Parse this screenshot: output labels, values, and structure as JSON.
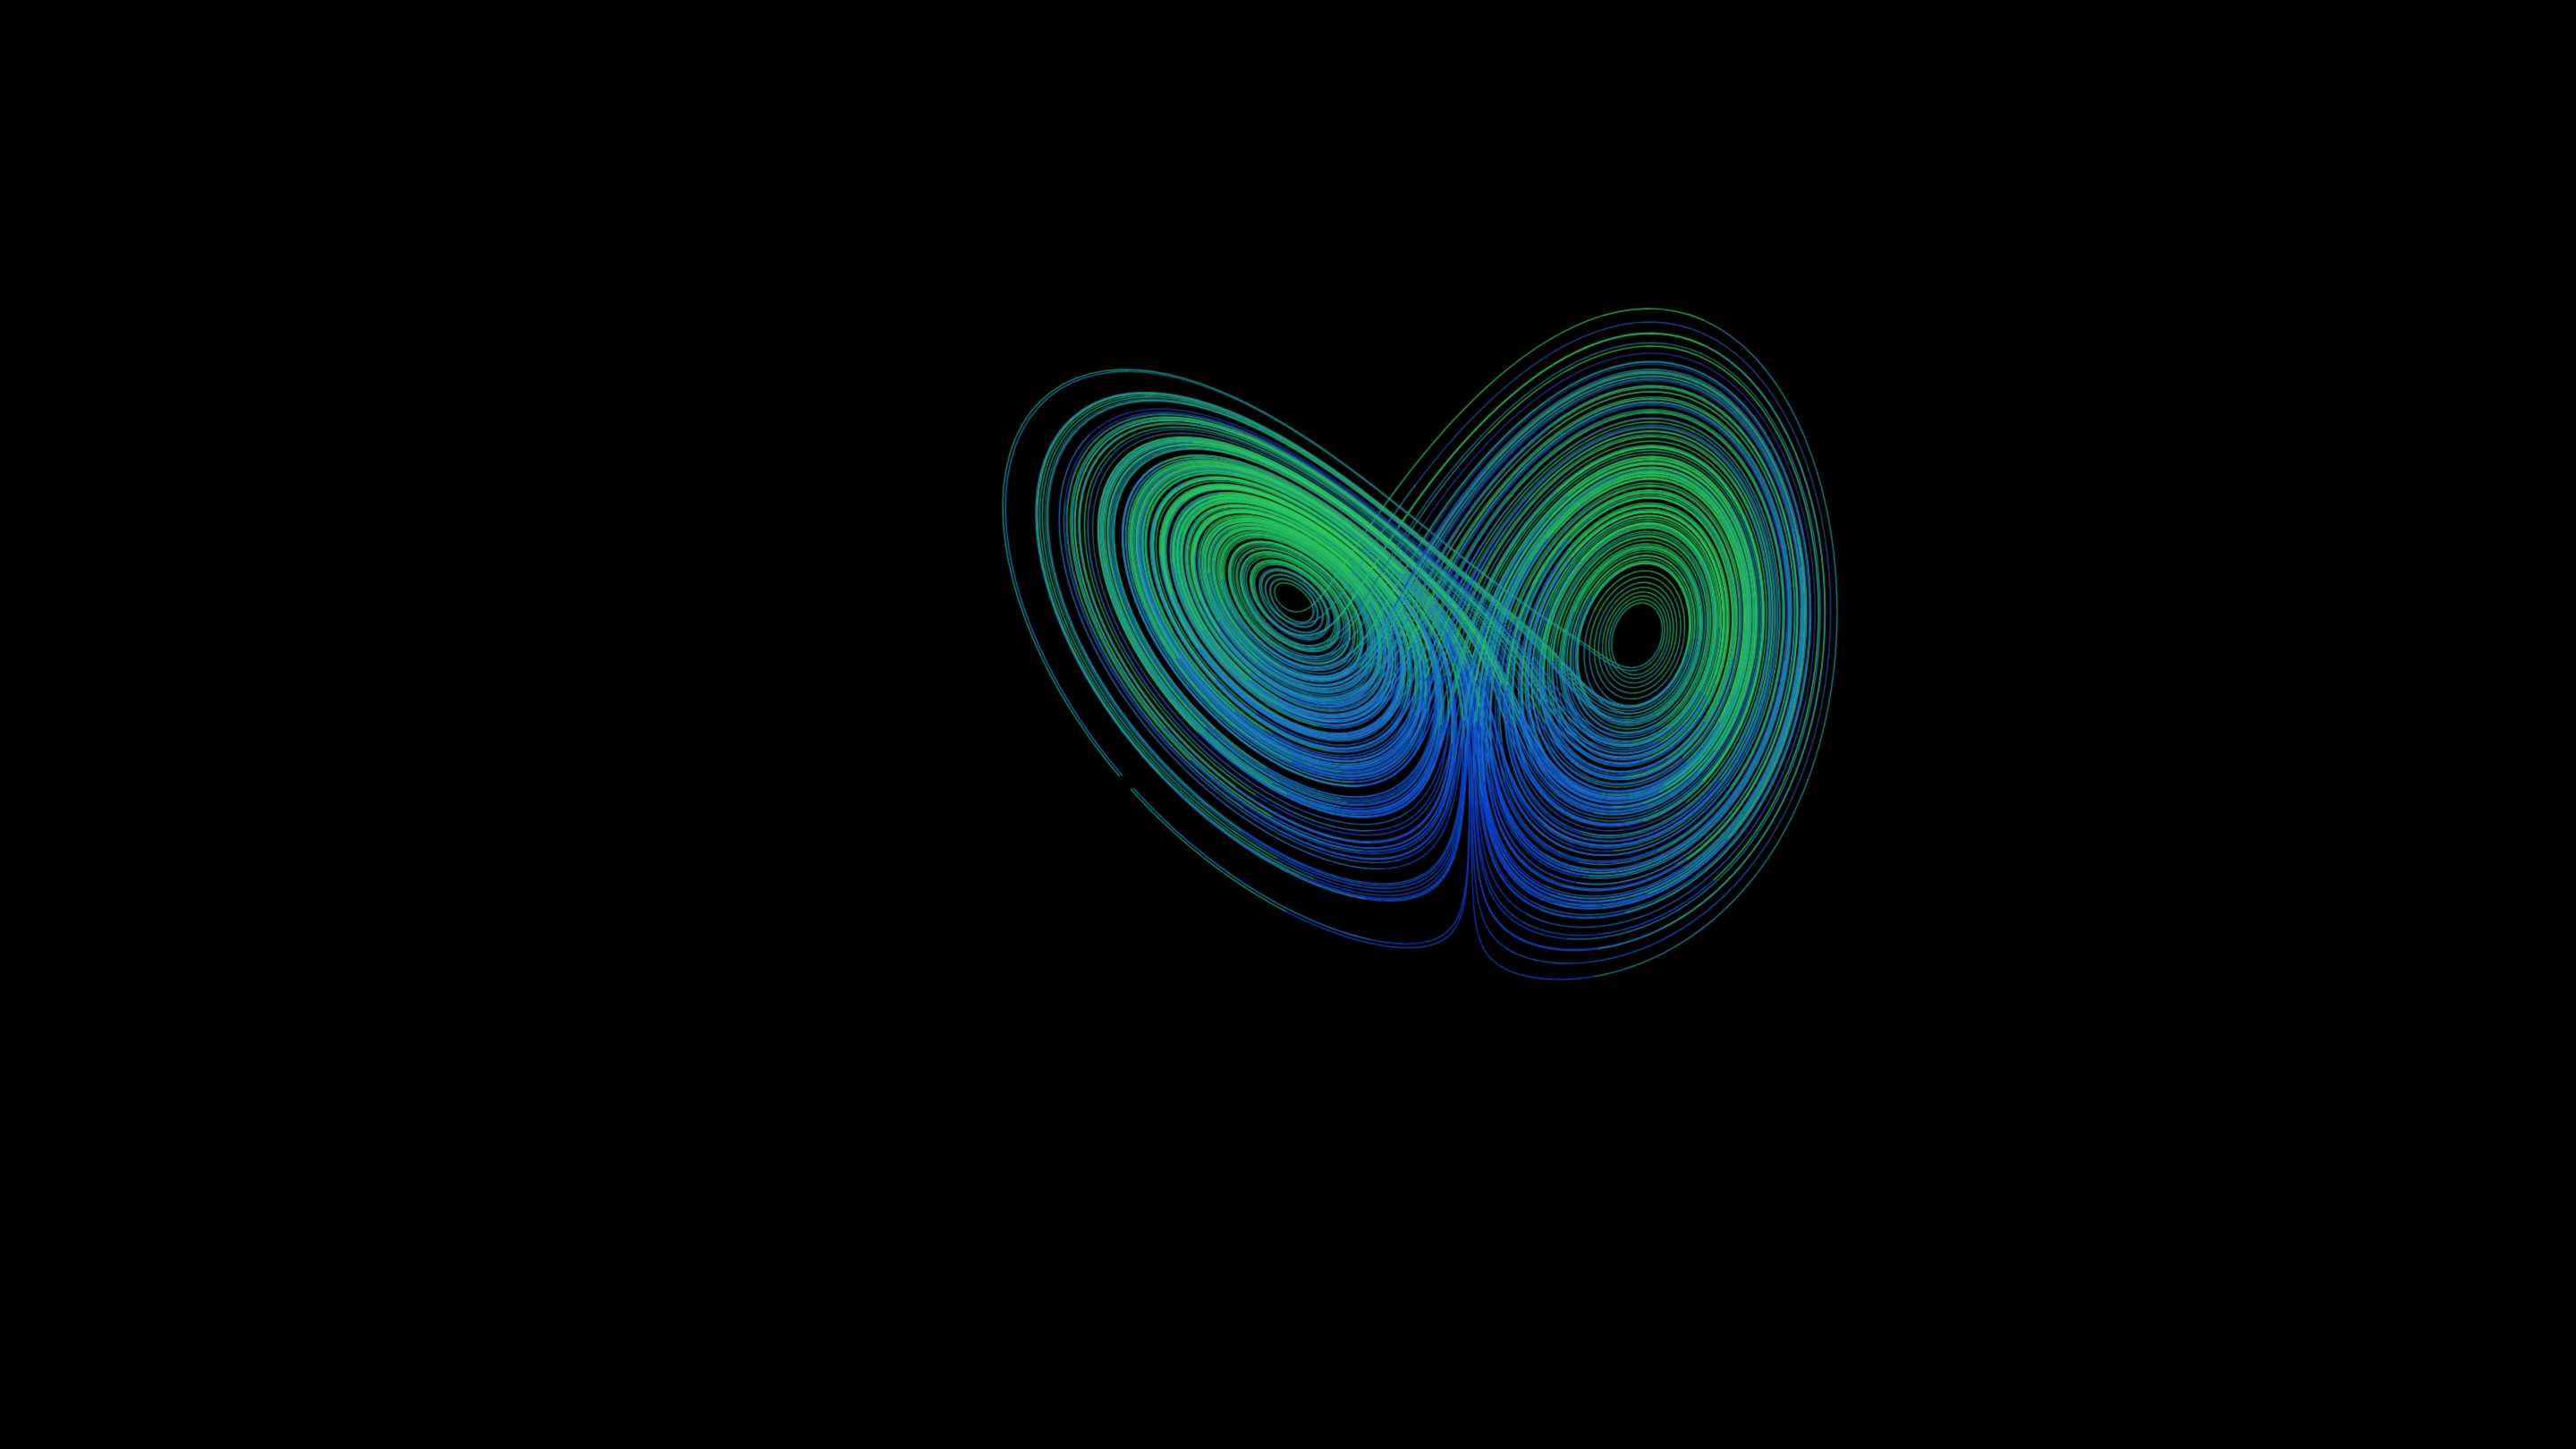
{
  "scene": {
    "subject": "lorenz-attractor",
    "background_color": "#000000",
    "palette": {
      "core": "#0a3fd6",
      "inner": "#1f7fd0",
      "mid": "#1fb56a",
      "bright": "#2fd65a",
      "outer": "#1a3ea8"
    },
    "camera": {
      "projection": "perspective",
      "view": "oblique-low"
    }
  }
}
